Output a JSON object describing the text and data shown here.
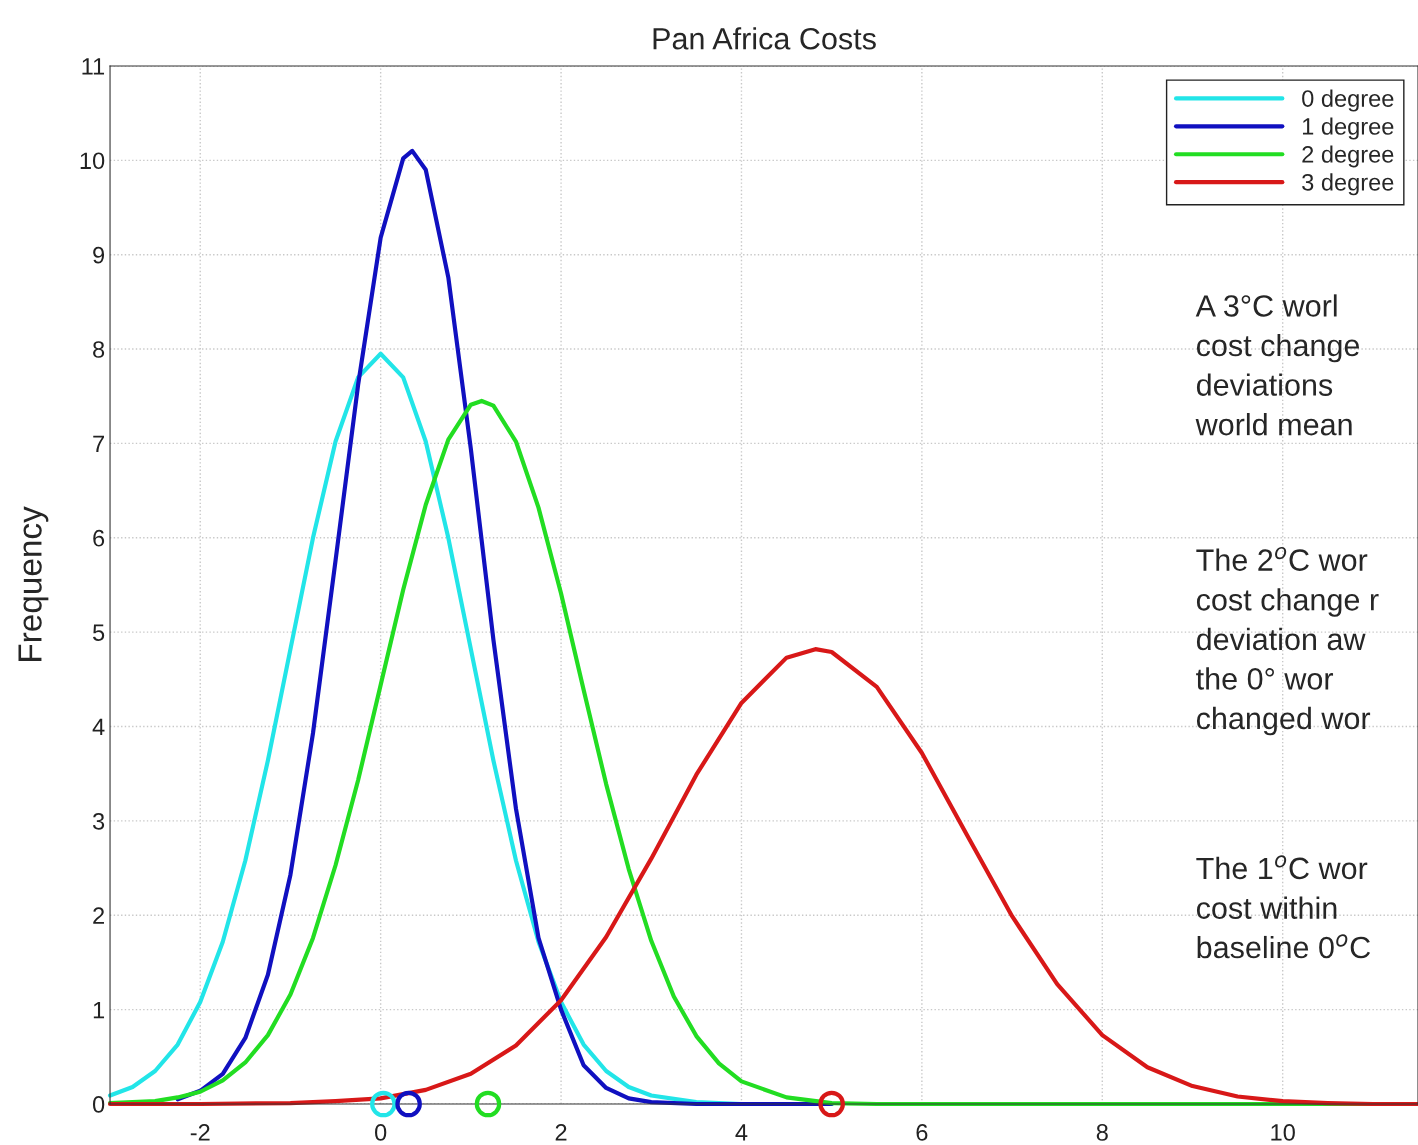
{
  "chart_data": {
    "type": "line",
    "title": "Pan Africa Costs",
    "ylabel": "Frequency",
    "xlim": [
      -3,
      11.5
    ],
    "xticks": [
      -2,
      0,
      2,
      4,
      6,
      8,
      10
    ],
    "ylim": [
      0,
      11
    ],
    "yticks": [
      0,
      1,
      2,
      3,
      4,
      5,
      6,
      7,
      8,
      9,
      10,
      11
    ],
    "grid": true,
    "legend": "top right",
    "series": [
      {
        "name": "0 degree",
        "type": "line",
        "color": "#22e5e8",
        "x": [
          -3,
          -2.75,
          -2.5,
          -2.25,
          -2,
          -1.75,
          -1.5,
          -1.25,
          -1,
          -0.75,
          -0.5,
          -0.25,
          0,
          0.25,
          0.5,
          0.75,
          1,
          1.25,
          1.5,
          1.75,
          2,
          2.25,
          2.5,
          2.75,
          3,
          3.5,
          4,
          5
        ],
        "values": [
          0.09,
          0.18,
          0.35,
          0.63,
          1.08,
          1.72,
          2.58,
          3.64,
          4.82,
          6.0,
          7.02,
          7.7,
          7.95,
          7.7,
          7.02,
          6.0,
          4.82,
          3.64,
          2.58,
          1.72,
          1.08,
          0.63,
          0.35,
          0.18,
          0.09,
          0.02,
          0,
          0
        ]
      },
      {
        "name": "1 degree",
        "type": "line",
        "color": "#1010c0",
        "x": [
          -2.25,
          -2,
          -1.75,
          -1.5,
          -1.25,
          -1,
          -0.75,
          -0.5,
          -0.25,
          0,
          0.25,
          0.35,
          0.5,
          0.75,
          1,
          1.25,
          1.5,
          1.75,
          2,
          2.25,
          2.5,
          2.75,
          3,
          3.5,
          4,
          5
        ],
        "values": [
          0.05,
          0.14,
          0.32,
          0.7,
          1.37,
          2.43,
          3.93,
          5.76,
          7.62,
          9.18,
          10.02,
          10.1,
          9.9,
          8.76,
          6.94,
          4.92,
          3.13,
          1.76,
          1.0,
          0.41,
          0.17,
          0.06,
          0.02,
          0,
          0,
          0
        ]
      },
      {
        "name": "2 degree",
        "type": "line",
        "color": "#22dd22",
        "x": [
          -3,
          -2.5,
          -2.25,
          -2,
          -1.75,
          -1.5,
          -1.25,
          -1,
          -0.75,
          -0.5,
          -0.25,
          0,
          0.25,
          0.5,
          0.75,
          1,
          1.12,
          1.25,
          1.5,
          1.75,
          2,
          2.25,
          2.5,
          2.75,
          3,
          3.25,
          3.5,
          3.75,
          4,
          4.5,
          5,
          5.5,
          11.5
        ],
        "values": [
          0.01,
          0.03,
          0.07,
          0.13,
          0.25,
          0.44,
          0.73,
          1.16,
          1.76,
          2.53,
          3.43,
          4.44,
          5.45,
          6.35,
          7.04,
          7.41,
          7.45,
          7.4,
          7.02,
          6.32,
          5.41,
          4.39,
          3.39,
          2.49,
          1.73,
          1.14,
          0.72,
          0.43,
          0.24,
          0.07,
          0.01,
          0,
          0
        ]
      },
      {
        "name": "3 degree",
        "type": "line",
        "color": "#d81818",
        "x": [
          -3,
          -2,
          -1,
          -0.5,
          0,
          0.5,
          1,
          1.5,
          2,
          2.5,
          3,
          3.5,
          4,
          4.5,
          4.82,
          5,
          5.5,
          6,
          6.5,
          7,
          7.5,
          8,
          8.5,
          9,
          9.5,
          10,
          10.5,
          11,
          11.5
        ],
        "values": [
          0,
          0,
          0.01,
          0.03,
          0.06,
          0.15,
          0.32,
          0.62,
          1.1,
          1.77,
          2.6,
          3.49,
          4.25,
          4.73,
          4.82,
          4.79,
          4.42,
          3.72,
          2.85,
          1.99,
          1.27,
          0.73,
          0.39,
          0.19,
          0.08,
          0.03,
          0.01,
          0,
          0
        ]
      },
      {
        "type": "scatter",
        "marker": "circle",
        "color": "#22e5e8",
        "x": [
          0.03
        ],
        "values": [
          0
        ]
      },
      {
        "type": "scatter",
        "marker": "circle",
        "color": "#1010c0",
        "x": [
          0.31
        ],
        "values": [
          0
        ]
      },
      {
        "type": "scatter",
        "marker": "circle",
        "color": "#22dd22",
        "x": [
          1.19
        ],
        "values": [
          0
        ]
      },
      {
        "type": "scatter",
        "marker": "circle",
        "color": "#d81818",
        "x": [
          5.0
        ],
        "values": [
          0
        ]
      }
    ],
    "annotations": [
      "A 3°C worl\ncost change\ndeviations\nworld mean",
      "The 2$^{o}$C wor\ncost change r\ndeviation aw\nthe 0° wor\nchanged wor",
      "The 1$^{o}$C wor\ncost within\nbaseline 0$^{o}$C"
    ]
  }
}
